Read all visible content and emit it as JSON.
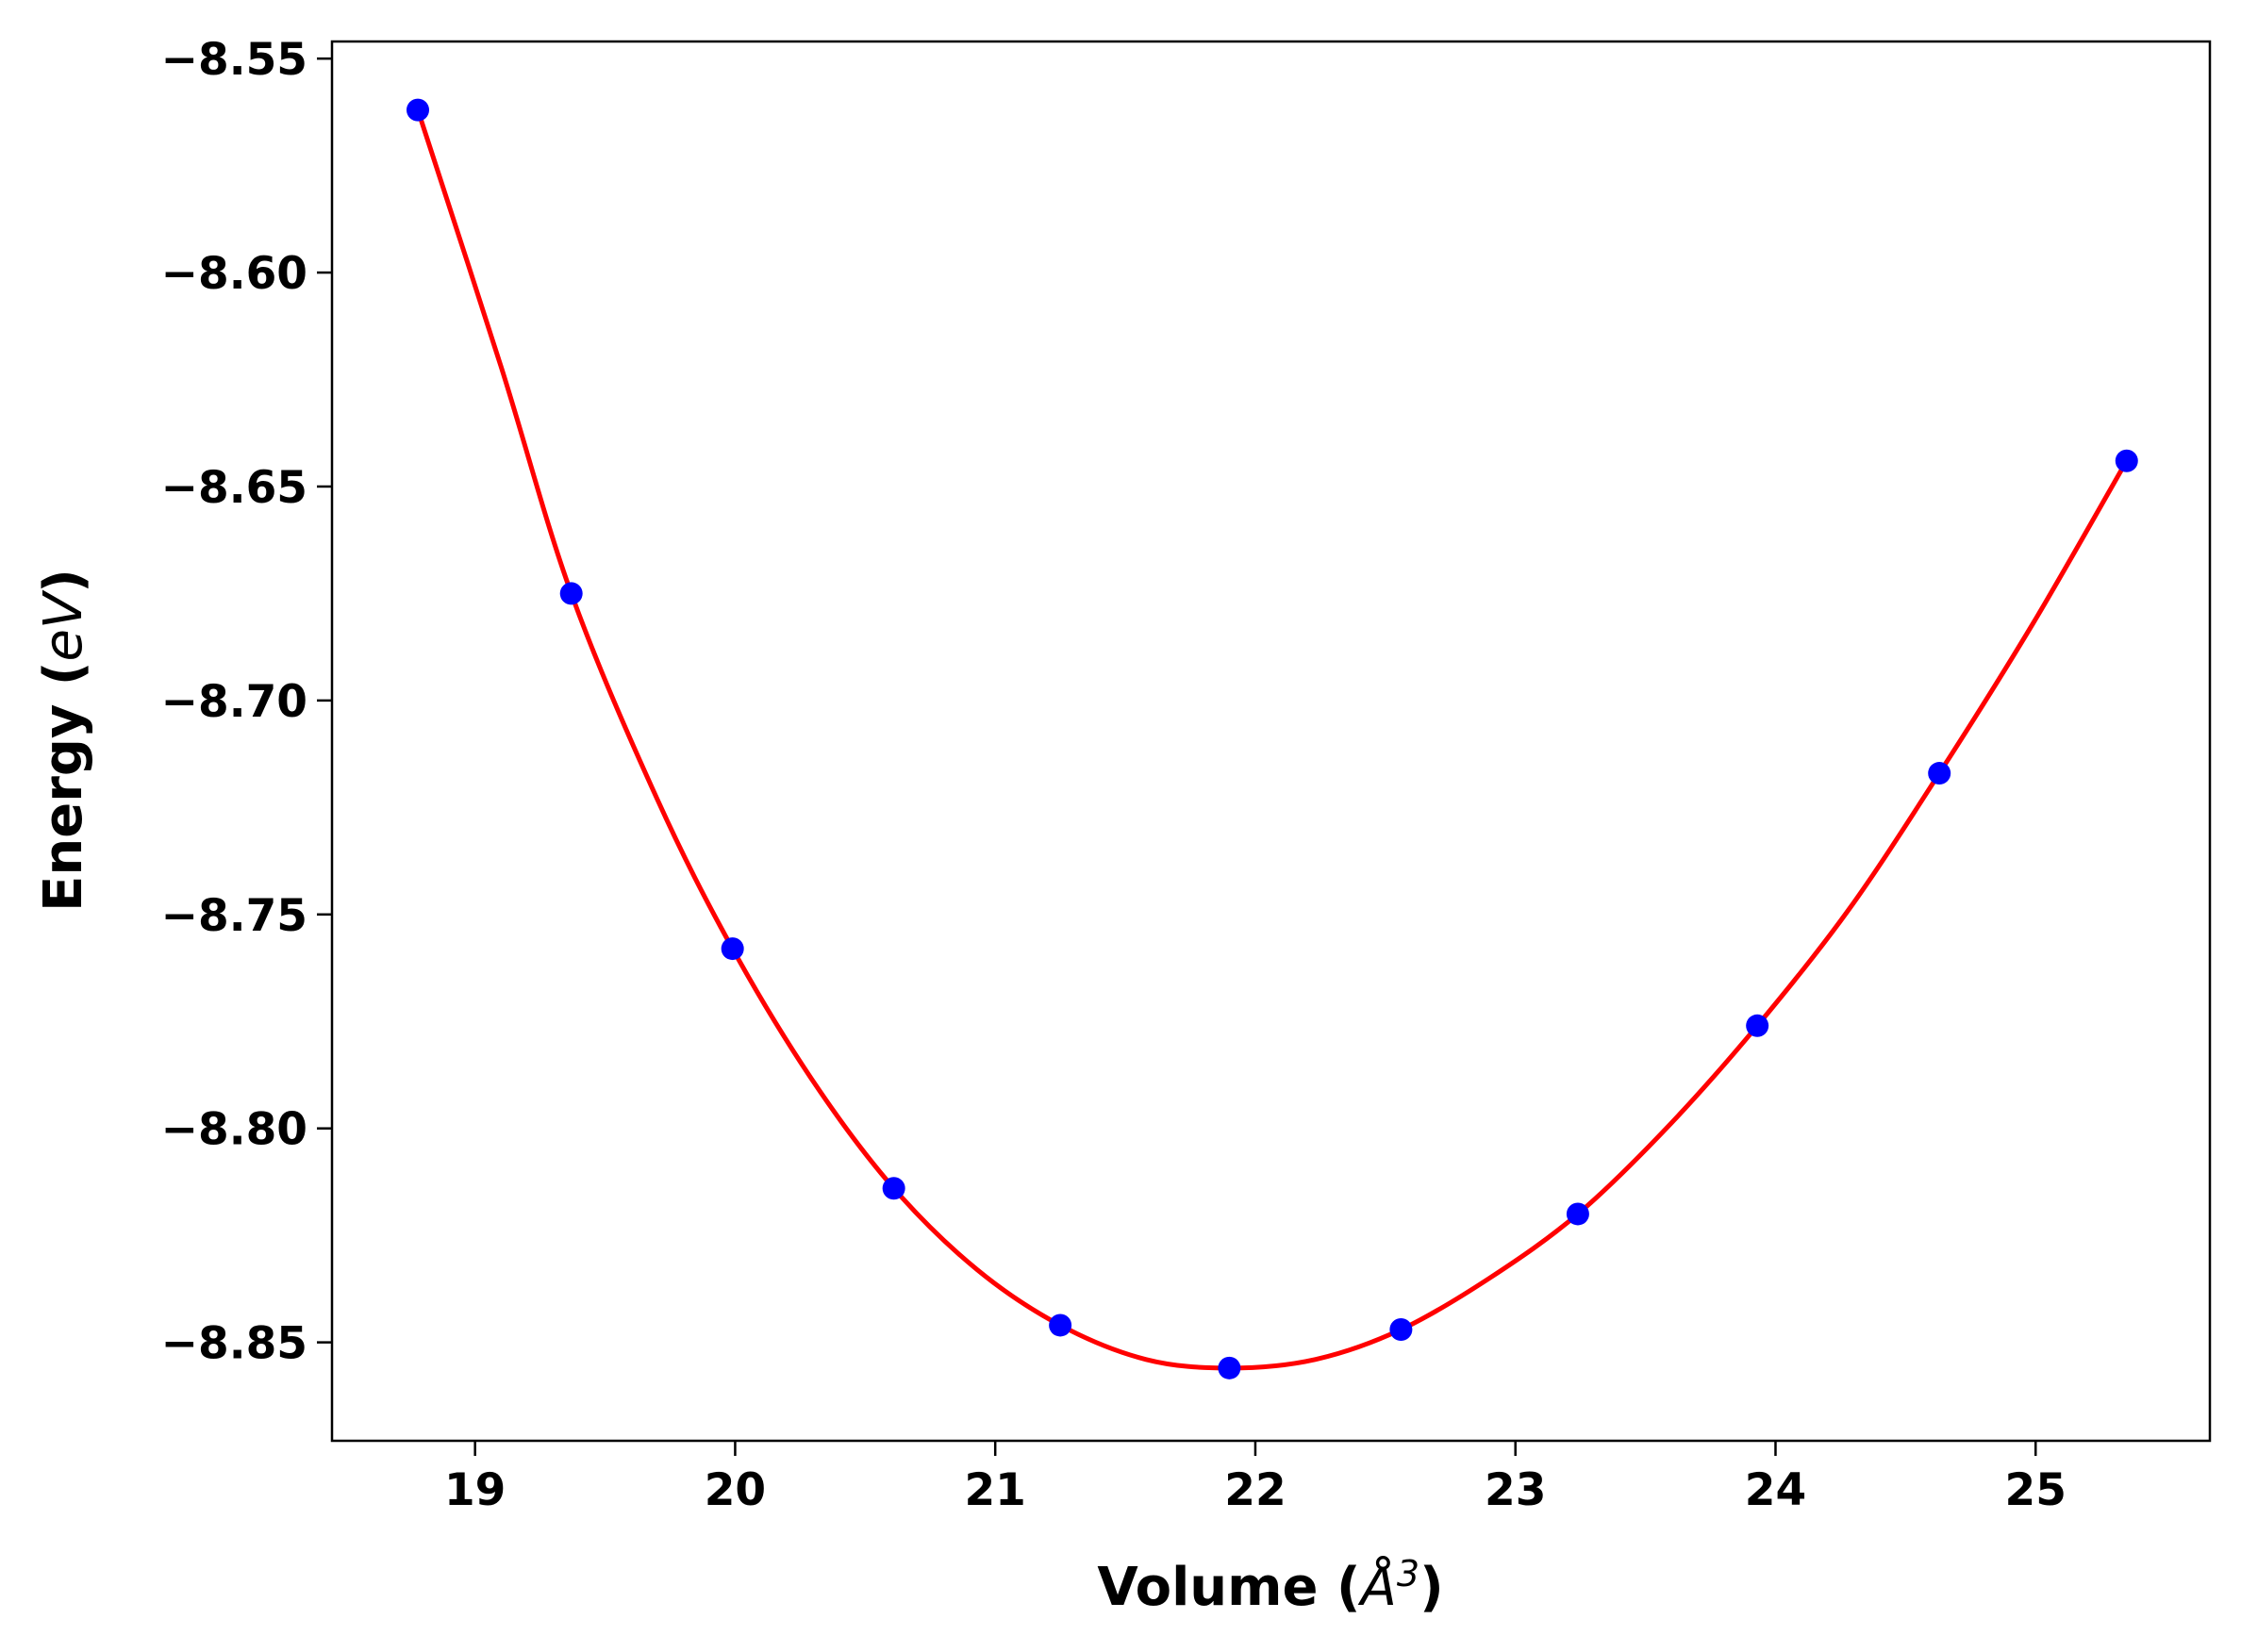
{
  "chart_data": {
    "type": "scatter",
    "xlabel": {
      "text": "Volume (",
      "symbol": "Å",
      "power": "3",
      "close": ")"
    },
    "ylabel": {
      "text": "Energy (",
      "unit": "eV",
      "close": ")"
    },
    "xlim": [
      18.45,
      25.67
    ],
    "ylim": [
      -8.873,
      -8.546
    ],
    "xticks": [
      19,
      20,
      21,
      22,
      23,
      24,
      25
    ],
    "xtick_labels": [
      "19",
      "20",
      "21",
      "22",
      "23",
      "24",
      "25"
    ],
    "yticks": [
      -8.55,
      -8.6,
      -8.65,
      -8.7,
      -8.75,
      -8.8,
      -8.85
    ],
    "ytick_labels": [
      "−8.55",
      "−8.60",
      "−8.65",
      "−8.70",
      "−8.75",
      "−8.80",
      "−8.85"
    ],
    "grid": false,
    "legend": "none",
    "series": [
      {
        "kind": "points",
        "color": "#0000ff",
        "x": [
          18.78,
          19.37,
          19.99,
          20.61,
          21.25,
          21.9,
          22.56,
          23.24,
          23.93,
          24.63,
          25.35
        ],
        "y": [
          -8.562,
          -8.675,
          -8.758,
          -8.814,
          -8.846,
          -8.856,
          -8.847,
          -8.82,
          -8.776,
          -8.717,
          -8.644
        ]
      },
      {
        "kind": "fit-curve",
        "color": "#ff0000",
        "x": [
          18.78,
          19.1,
          19.37,
          19.7,
          19.99,
          20.3,
          20.61,
          20.93,
          21.25,
          21.58,
          21.9,
          22.23,
          22.56,
          22.9,
          23.24,
          23.58,
          23.93,
          24.28,
          24.63,
          24.99,
          25.35
        ],
        "y": [
          -8.562,
          -8.622,
          -8.675,
          -8.723,
          -8.758,
          -8.789,
          -8.814,
          -8.833,
          -8.846,
          -8.854,
          -8.856,
          -8.854,
          -8.847,
          -8.835,
          -8.82,
          -8.8,
          -8.776,
          -8.749,
          -8.717,
          -8.682,
          -8.644
        ]
      }
    ]
  }
}
